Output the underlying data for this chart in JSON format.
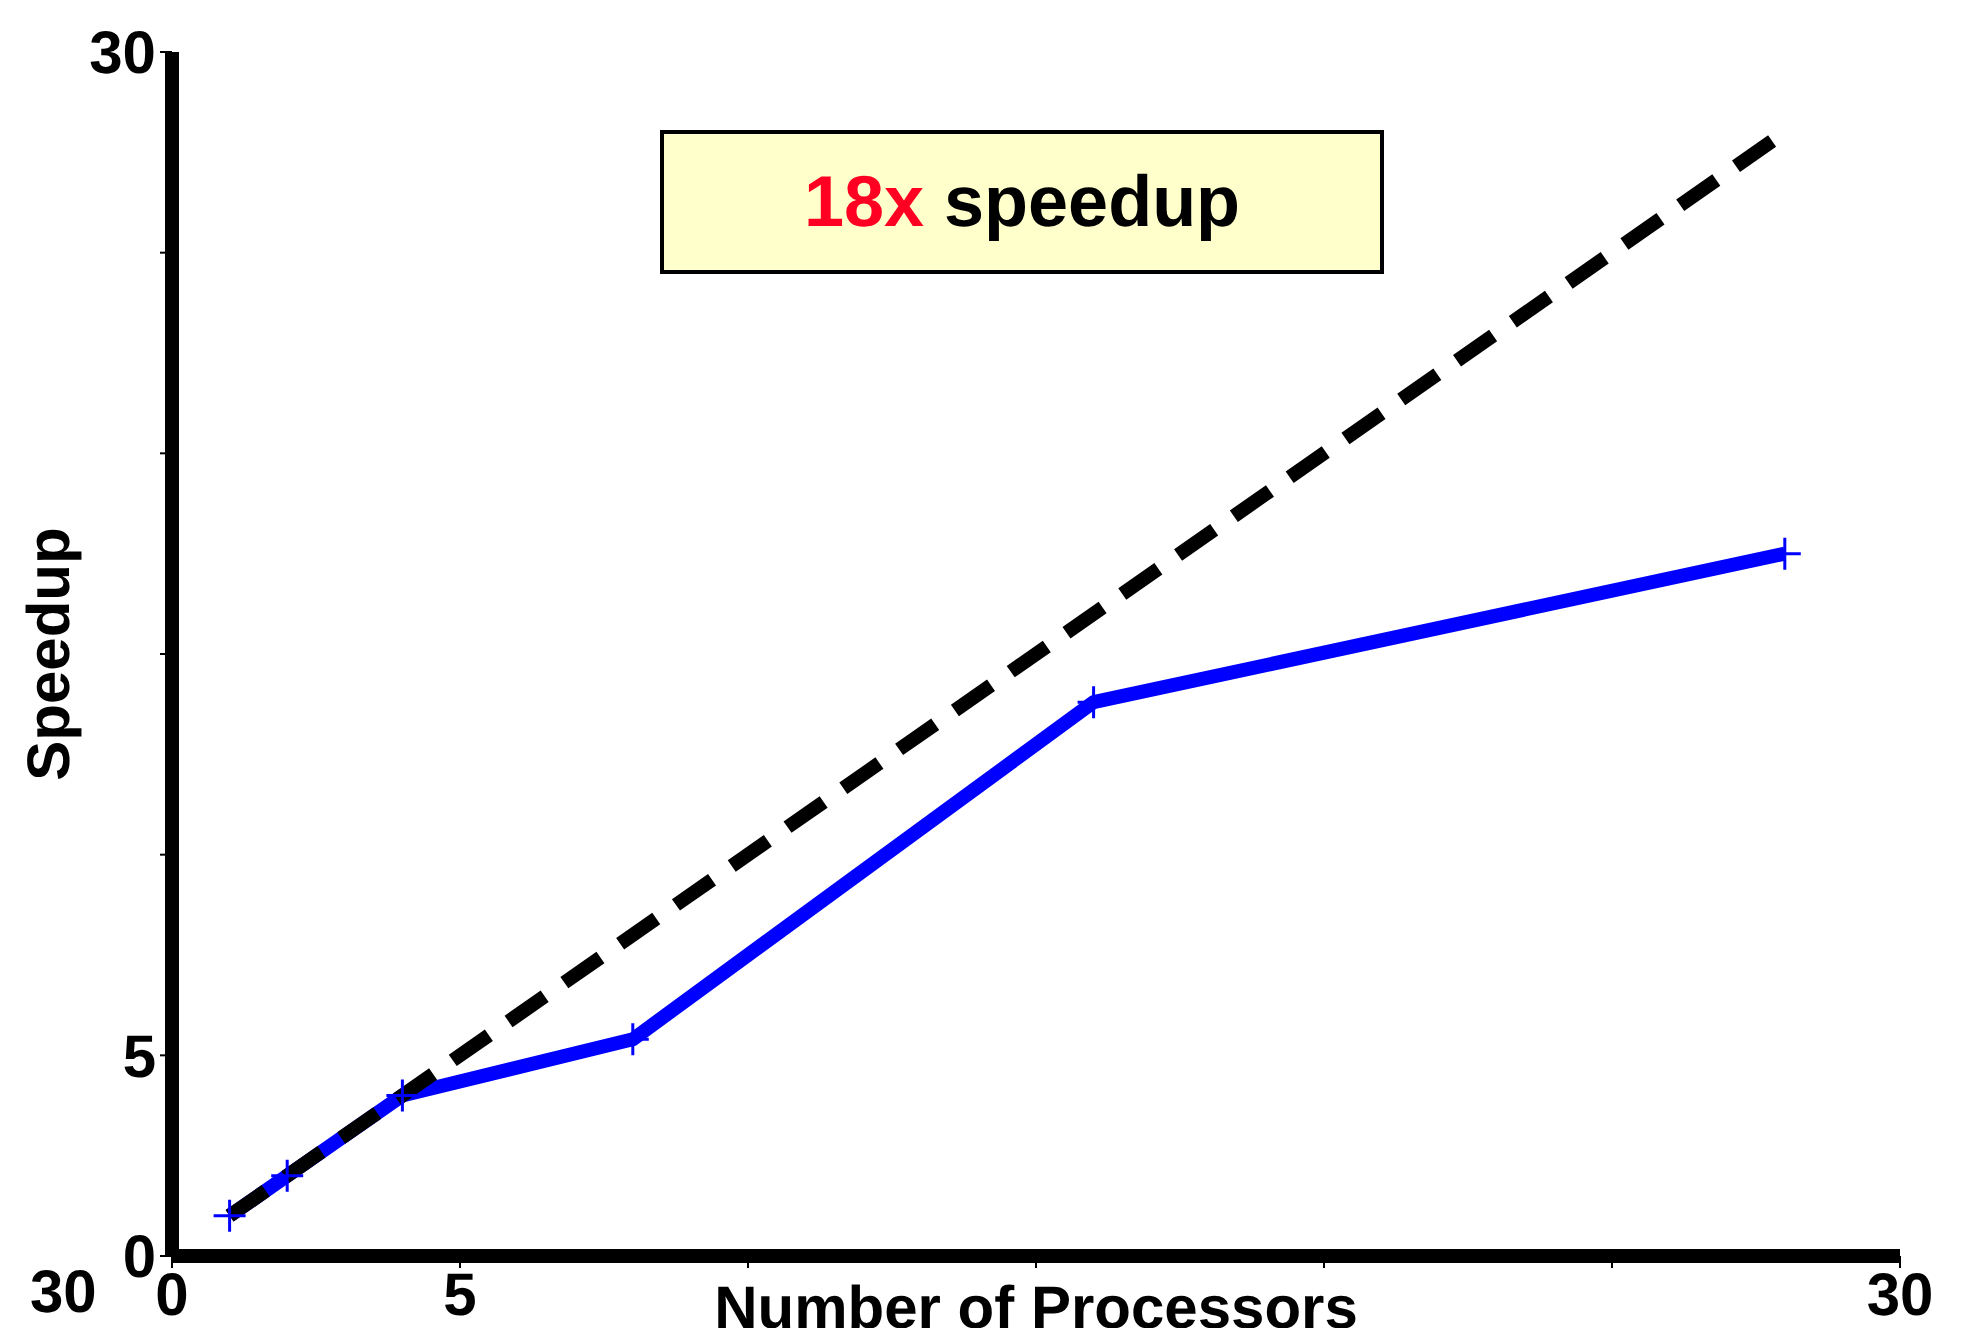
{
  "chart_data": {
    "type": "line",
    "xlabel": "Number of Processors",
    "ylabel": "Speedup",
    "annotations": [
      "18x speedup",
      "30"
    ],
    "xlim": [
      0,
      30
    ],
    "xticks": [
      0,
      5,
      {
        "value": 10,
        "label": null
      },
      {
        "value": 15,
        "label": null
      },
      {
        "value": 20,
        "label": null
      },
      {
        "value": 25,
        "label": null
      },
      30
    ],
    "ylim": [
      0,
      30
    ],
    "yticks": [
      0,
      5,
      {
        "value": 10,
        "label": null
      },
      {
        "value": 15,
        "label": null
      },
      {
        "value": 20,
        "label": null
      },
      {
        "value": 25,
        "label": null
      },
      30
    ],
    "grid": false,
    "legend": false,
    "series": [
      {
        "color": "#0000ff",
        "marker": "cross",
        "line_style": "solid",
        "x": [
          1,
          2,
          4,
          8,
          16,
          28
        ],
        "values": [
          1,
          2,
          4,
          5.4,
          13.8,
          17.5
        ]
      },
      {
        "color": "#000000",
        "marker": "none",
        "line_style": "dashed",
        "x": [
          1,
          28
        ],
        "values": [
          1,
          28
        ]
      }
    ]
  }
}
